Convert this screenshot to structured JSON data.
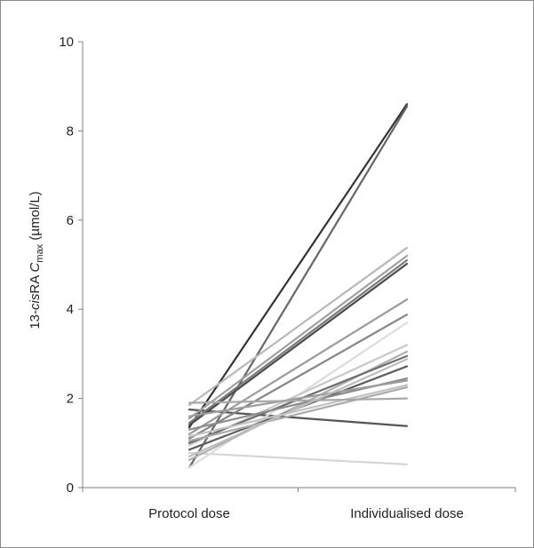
{
  "chart_data": {
    "type": "line",
    "title": "",
    "ylabel_parts": {
      "prefix": "13-",
      "italic": "cis",
      "mid": "RA ",
      "var": "C",
      "sub": "max",
      "unit": " (µmol/L)"
    },
    "xlabel": "",
    "categories": [
      "Protocol dose",
      "Individualised dose"
    ],
    "ylim": [
      0,
      10
    ],
    "yticks": [
      0,
      2,
      4,
      6,
      8,
      10
    ],
    "ytick_labels": [
      "0",
      "2",
      "4",
      "6",
      "8",
      "10"
    ],
    "grid": false,
    "legend": "none",
    "series": [
      {
        "values": [
          1.35,
          8.6
        ],
        "color": "#333333"
      },
      {
        "values": [
          0.45,
          8.55
        ],
        "color": "#666666"
      },
      {
        "values": [
          1.75,
          1.38
        ],
        "color": "#555555"
      },
      {
        "values": [
          0.78,
          0.52
        ],
        "color": "#d6d6d6"
      },
      {
        "values": [
          1.85,
          5.38
        ],
        "color": "#b8b8b8"
      },
      {
        "values": [
          1.55,
          5.2
        ],
        "color": "#a0a0a0"
      },
      {
        "values": [
          1.45,
          5.1
        ],
        "color": "#7a7a7a"
      },
      {
        "values": [
          1.4,
          5.02
        ],
        "color": "#4a4a4a"
      },
      {
        "values": [
          1.2,
          4.22
        ],
        "color": "#9a9a9a"
      },
      {
        "values": [
          1.1,
          3.88
        ],
        "color": "#858585"
      },
      {
        "values": [
          0.45,
          3.7
        ],
        "color": "#dcdcdc"
      },
      {
        "values": [
          0.95,
          3.2
        ],
        "color": "#c8c8c8"
      },
      {
        "values": [
          0.62,
          3.05
        ],
        "color": "#b0b0b0"
      },
      {
        "values": [
          1.0,
          2.95
        ],
        "color": "#6e6e6e"
      },
      {
        "values": [
          0.85,
          2.72
        ],
        "color": "#5e5e5e"
      },
      {
        "values": [
          1.3,
          2.45
        ],
        "color": "#8c8c8c"
      },
      {
        "values": [
          1.6,
          2.4
        ],
        "color": "#9c9c9c"
      },
      {
        "values": [
          1.15,
          2.3
        ],
        "color": "#c2c2c2"
      },
      {
        "values": [
          1.05,
          2.25
        ],
        "color": "#aaaaaa"
      },
      {
        "values": [
          1.9,
          2.0
        ],
        "color": "#a8a8a8"
      },
      {
        "values": [
          0.7,
          2.88
        ],
        "color": "#bdbdbd"
      }
    ]
  }
}
